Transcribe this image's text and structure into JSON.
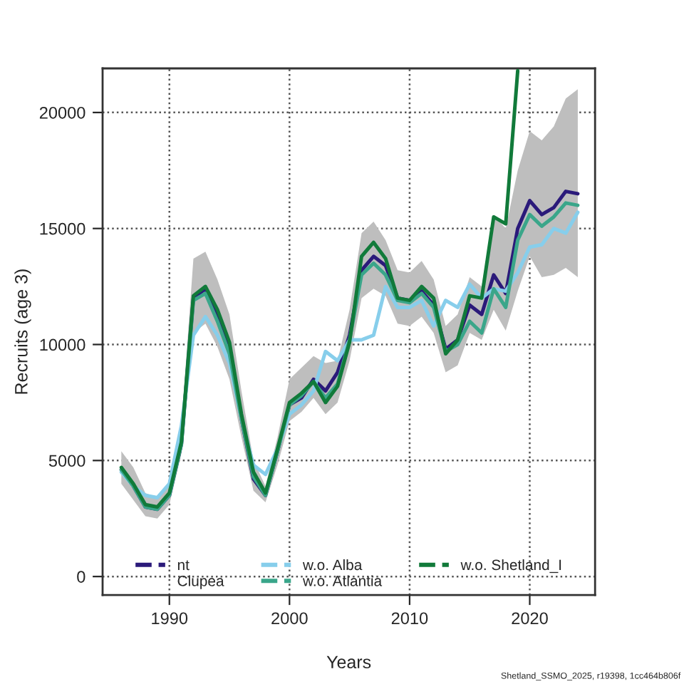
{
  "chart_data": {
    "type": "line",
    "xlabel": "Years",
    "ylabel": "Recruits (age 3)",
    "x": [
      1986,
      1987,
      1988,
      1989,
      1990,
      1991,
      1992,
      1993,
      1994,
      1995,
      1996,
      1997,
      1998,
      1999,
      2000,
      2001,
      2002,
      2003,
      2004,
      2005,
      2006,
      2007,
      2008,
      2009,
      2010,
      2011,
      2012,
      2013,
      2014,
      2015,
      2016,
      2017,
      2018,
      2019,
      2020,
      2021,
      2022,
      2023,
      2024
    ],
    "series": [
      {
        "name": "nt",
        "color": "#2b1a7a",
        "values": [
          4600,
          3900,
          3000,
          2900,
          3500,
          5700,
          12000,
          12400,
          11200,
          9700,
          6800,
          4200,
          3500,
          5400,
          7400,
          7700,
          8500,
          8000,
          8800,
          10400,
          13200,
          13800,
          13400,
          12000,
          11900,
          12300,
          11700,
          9800,
          10200,
          11700,
          11300,
          13000,
          12200,
          15000,
          16200,
          15600,
          15900,
          16600,
          16500
        ],
        "lower": [
          4000,
          3300,
          2600,
          2500,
          3100,
          5300,
          10500,
          10900,
          9900,
          8500,
          6000,
          3700,
          3200,
          4800,
          6700,
          7100,
          7700,
          7000,
          7500,
          9300,
          12000,
          12400,
          12100,
          10900,
          10800,
          11200,
          10500,
          8800,
          9100,
          10500,
          10200,
          11500,
          10600,
          12300,
          13800,
          12900,
          13000,
          13300,
          12900
        ],
        "upper": [
          5400,
          4700,
          3600,
          3400,
          4100,
          6500,
          13700,
          14000,
          12800,
          11300,
          8000,
          5000,
          3900,
          6000,
          8500,
          9000,
          9500,
          9200,
          9300,
          11500,
          14800,
          15300,
          14500,
          13200,
          13100,
          13600,
          12800,
          10800,
          11300,
          12900,
          12500,
          15600,
          15000,
          17500,
          19200,
          18800,
          19400,
          20600,
          21000
        ]
      },
      {
        "name": "w.o. Alba",
        "color": "#87ceeb",
        "values": [
          4500,
          3900,
          3500,
          3400,
          4000,
          6500,
          10400,
          11200,
          10400,
          9200,
          6800,
          4800,
          4400,
          5500,
          7000,
          7400,
          8000,
          9700,
          9300,
          10200,
          10200,
          10400,
          12500,
          11600,
          11600,
          11900,
          10800,
          11900,
          11600,
          12600,
          12000,
          12400,
          12300,
          13100,
          14200,
          14300,
          15000,
          14800,
          15700
        ]
      },
      {
        "name": "w.o. Atlantia",
        "color": "#3aa68a",
        "values": [
          4600,
          3900,
          3000,
          2900,
          3500,
          5700,
          11900,
          12200,
          11000,
          9600,
          6800,
          4300,
          3500,
          5400,
          7400,
          7800,
          8400,
          7700,
          8300,
          10200,
          13000,
          13500,
          13000,
          11900,
          11800,
          12200,
          11600,
          9700,
          10000,
          11000,
          10500,
          12400,
          11600,
          14500,
          15600,
          15100,
          15500,
          16100,
          16000
        ]
      },
      {
        "name": "w.o. Shetland_I",
        "color": "#117a3a",
        "values": [
          4700,
          4000,
          3100,
          3000,
          3600,
          5800,
          12100,
          12500,
          11500,
          10100,
          7000,
          4500,
          3600,
          5500,
          7500,
          7900,
          8400,
          7500,
          8200,
          10100,
          13800,
          14400,
          13700,
          12000,
          11900,
          12500,
          12000,
          9600,
          10200,
          12100,
          12000,
          15500,
          15200,
          21800,
          null,
          null,
          null,
          null,
          null
        ]
      }
    ],
    "xlim": [
      1984.44,
      2025.44
    ],
    "ylim": [
      -800,
      21900
    ],
    "xticks": [
      1990,
      2000,
      2010,
      2020
    ],
    "yticks": [
      0,
      5000,
      10000,
      15000,
      20000
    ],
    "grid": true,
    "legend": "bottom",
    "line_style": "solid",
    "marker": "none",
    "annotations": [
      "Clupea",
      "Shetland_SSMO_2025, r19398, 1cc464b806f"
    ]
  }
}
